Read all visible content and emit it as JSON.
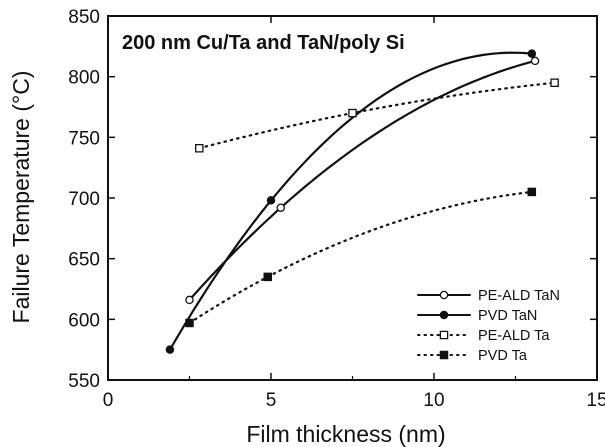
{
  "chart_data": {
    "type": "line",
    "title": "200 nm Cu/Ta and TaN/poly Si",
    "xlabel": "Film thickness (nm)",
    "ylabel": "Failure Temperature (°C)",
    "xlim": [
      0,
      15
    ],
    "ylim": [
      550,
      850
    ],
    "xticks": [
      0,
      5,
      10,
      15
    ],
    "yticks": [
      550,
      600,
      650,
      700,
      750,
      800,
      850
    ],
    "grid": false,
    "legend_position": "bottom-right",
    "series": [
      {
        "name": "PE-ALD TaN",
        "marker": "open-circle",
        "line": "solid",
        "color": "#111111",
        "x": [
          2.5,
          5.3,
          13.1
        ],
        "y": [
          616,
          692,
          813
        ]
      },
      {
        "name": "PVD TaN",
        "marker": "filled-circle",
        "line": "solid",
        "color": "#111111",
        "x": [
          1.9,
          5.0,
          13.0
        ],
        "y": [
          575,
          698,
          819
        ]
      },
      {
        "name": "PE-ALD Ta",
        "marker": "open-square",
        "line": "dotted",
        "color": "#111111",
        "x": [
          2.8,
          7.5,
          13.7
        ],
        "y": [
          741,
          770,
          795
        ]
      },
      {
        "name": "PVD Ta",
        "marker": "filled-square",
        "line": "dotted",
        "color": "#111111",
        "x": [
          2.5,
          4.9,
          13.0
        ],
        "y": [
          597,
          635,
          705
        ]
      }
    ]
  }
}
